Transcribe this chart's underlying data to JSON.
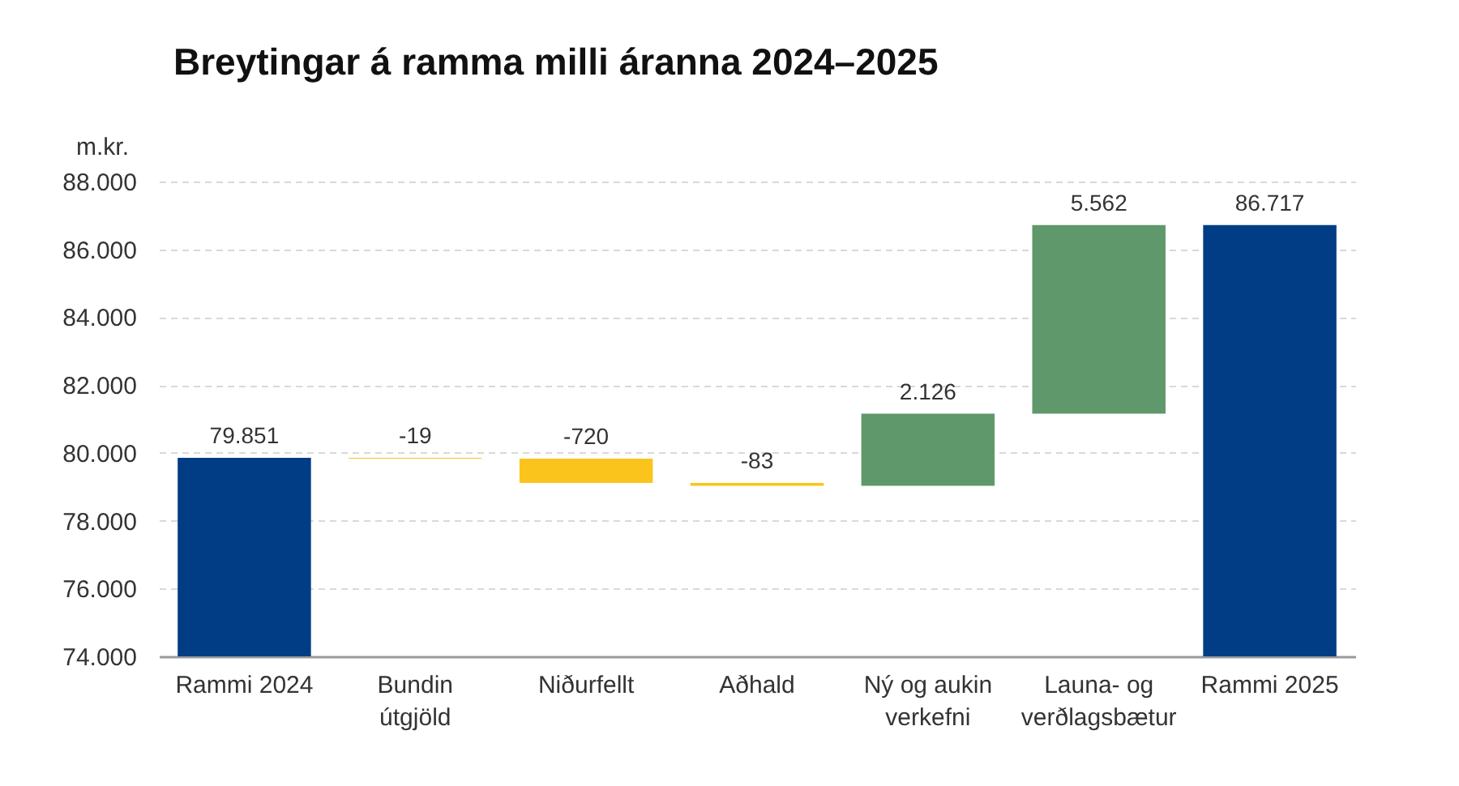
{
  "chart_data": {
    "type": "bar",
    "title": "Breytingar á ramma milli áranna 2024–2025",
    "ylabel": "m.kr.",
    "categories": [
      "Rammi 2024",
      "Bundin útgjöld",
      "Niðurfellt",
      "Aðhald",
      "Ný og aukin verkefni",
      "Launa- og verðlagsbætur",
      "Rammi 2025"
    ],
    "values": [
      79851,
      -19,
      -720,
      -83,
      2126,
      5562,
      86717
    ],
    "base": [
      null,
      79851,
      79832,
      79112,
      79029,
      81155,
      null
    ],
    "colors": [
      "#003d85",
      "#fbc41c",
      "#fbc41c",
      "#fbc41c",
      "#5f986b",
      "#5f986b",
      "#003d85"
    ],
    "value_labels": [
      "79.851",
      "-19",
      "-720",
      "-83",
      "2.126",
      "5.562",
      "86.717"
    ],
    "ylim": [
      74000,
      88000
    ],
    "yticks": [
      {
        "value": 74000,
        "label": "74.000"
      },
      {
        "value": 76000,
        "label": "76.000"
      },
      {
        "value": 78000,
        "label": "78.000"
      },
      {
        "value": 80000,
        "label": "80.000"
      },
      {
        "value": 82000,
        "label": "82.000"
      },
      {
        "value": 84000,
        "label": "84.000"
      },
      {
        "value": 86000,
        "label": "86.000"
      },
      {
        "value": 88000,
        "label": "88.000"
      }
    ],
    "grid": "y"
  }
}
